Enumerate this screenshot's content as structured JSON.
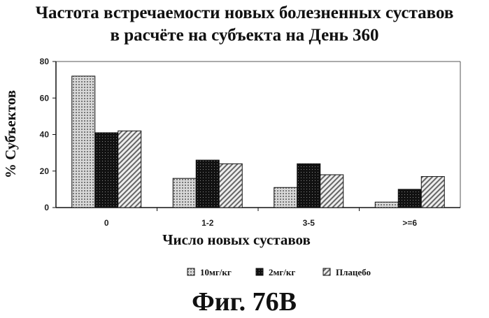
{
  "header": {
    "title_line1": "Частота встречаемости новых болезненных суставов",
    "title_line2": "в расчёте на субъекта на День 360"
  },
  "figure_caption": "Фиг. 76В",
  "colors": {
    "series_10": "#b8b8b8",
    "series_2": "#1a1a1a",
    "placebo": "#9a9a9a"
  },
  "chart_data": {
    "type": "bar",
    "title": "Частота встречаемости новых болезненных суставов в расчёте на субъекта на День 360",
    "xlabel": "Число новых суставов",
    "ylabel": "% Субъектов",
    "categories": [
      "0",
      "1-2",
      "3-5",
      ">=6"
    ],
    "ylim": [
      0,
      80
    ],
    "yticks": [
      0,
      20,
      40,
      60,
      80
    ],
    "grid": false,
    "legend_position": "bottom",
    "series": [
      {
        "name": "10мг/кг",
        "values": [
          72,
          16,
          11,
          3
        ]
      },
      {
        "name": "2мг/кг",
        "values": [
          41,
          26,
          24,
          10
        ]
      },
      {
        "name": "Плацебо",
        "values": [
          42,
          24,
          18,
          17
        ]
      }
    ]
  }
}
